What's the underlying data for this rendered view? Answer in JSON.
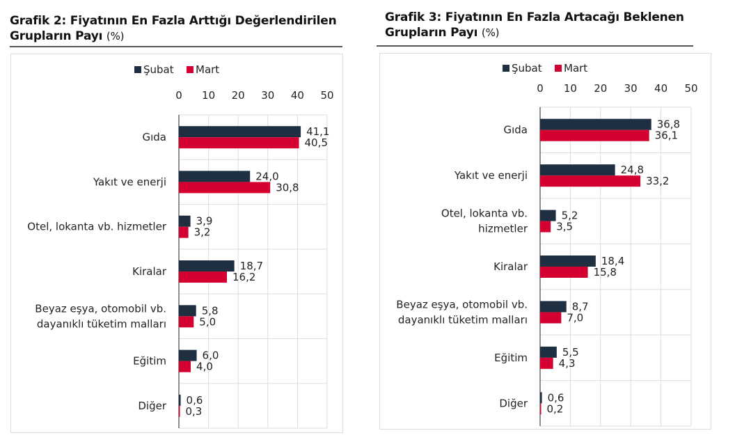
{
  "colors": {
    "subat": "#1f2f42",
    "mart": "#d50032"
  },
  "chart_data": [
    {
      "type": "bar",
      "orientation": "horizontal",
      "title": "Grafik 2: Fiyatının En Fazla Arttığı Değerlendirilen Grupların Payı",
      "title_unit": "(%)",
      "legend": [
        "Şubat",
        "Mart"
      ],
      "legend_position": "top",
      "xlim": [
        0,
        50
      ],
      "ticks": [
        "0",
        "10",
        "20",
        "30",
        "40",
        "50"
      ],
      "grid": true,
      "categories": [
        [
          "Gıda"
        ],
        [
          "Yakıt ve enerji"
        ],
        [
          "Otel, lokanta vb. hizmetler"
        ],
        [
          "Kiralar"
        ],
        [
          "Beyaz eşya, otomobil vb.",
          "dayanıklı tüketim malları"
        ],
        [
          "Eğitim"
        ],
        [
          "Diğer"
        ]
      ],
      "series": [
        {
          "name": "Şubat",
          "values": [
            41.1,
            24.0,
            3.9,
            18.7,
            5.8,
            6.0,
            0.6
          ],
          "labels": [
            "41,1",
            "24,0",
            "3,9",
            "18,7",
            "5,8",
            "6,0",
            "0,6"
          ]
        },
        {
          "name": "Mart",
          "values": [
            40.5,
            30.8,
            3.2,
            16.2,
            5.0,
            4.0,
            0.3
          ],
          "labels": [
            "40,5",
            "30,8",
            "3,2",
            "16,2",
            "5,0",
            "4,0",
            "0,3"
          ]
        }
      ]
    },
    {
      "type": "bar",
      "orientation": "horizontal",
      "title": "Grafik 3: Fiyatının En Fazla Artacağı Beklenen Grupların Payı",
      "title_unit": "(%)",
      "legend": [
        "Şubat",
        "Mart"
      ],
      "legend_position": "top",
      "xlim": [
        0,
        50
      ],
      "ticks": [
        "0",
        "10",
        "20",
        "30",
        "40",
        "50"
      ],
      "grid": true,
      "categories": [
        [
          "Gıda"
        ],
        [
          "Yakıt ve enerji"
        ],
        [
          "Otel, lokanta vb.",
          "hizmetler"
        ],
        [
          "Kiralar"
        ],
        [
          "Beyaz eşya, otomobil vb.",
          "dayanıklı tüketim malları"
        ],
        [
          "Eğitim"
        ],
        [
          "Diğer"
        ]
      ],
      "series": [
        {
          "name": "Şubat",
          "values": [
            36.8,
            24.8,
            5.2,
            18.4,
            8.7,
            5.5,
            0.6
          ],
          "labels": [
            "36,8",
            "24,8",
            "5,2",
            "18,4",
            "8,7",
            "5,5",
            "0,6"
          ]
        },
        {
          "name": "Mart",
          "values": [
            36.1,
            33.2,
            3.5,
            15.8,
            7.0,
            4.3,
            0.2
          ],
          "labels": [
            "36,1",
            "33,2",
            "3,5",
            "15,8",
            "7,0",
            "4,3",
            "0,2"
          ]
        }
      ]
    }
  ]
}
